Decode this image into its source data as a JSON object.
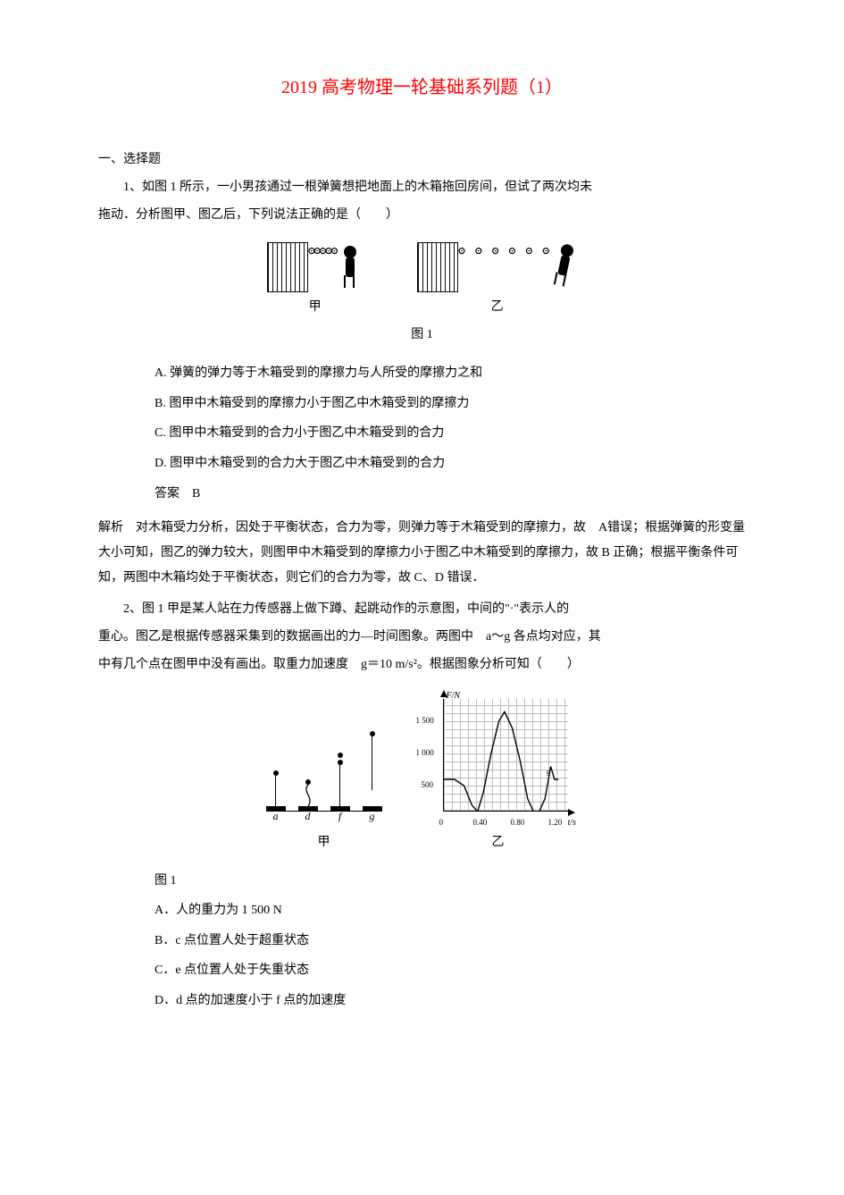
{
  "title": "2019 高考物理一轮基础系列题（1）",
  "section1_header": "一、选择题",
  "q1": {
    "text_line1": "1、如图 1 所示，一小男孩通过一根弹簧想把地面上的木箱拖回房间，但试了两次均未",
    "text_line2": "拖动．分析图甲、图乙后，下列说法正确的是（　　）",
    "fig_label_jia": "甲",
    "fig_label_yi": "乙",
    "fig_caption": "图 1",
    "opt_a": "A. 弹簧的弹力等于木箱受到的摩擦力与人所受的摩擦力之和",
    "opt_b": "B. 图甲中木箱受到的摩擦力小于图乙中木箱受到的摩擦力",
    "opt_c": "C. 图甲中木箱受到的合力小于图乙中木箱受到的合力",
    "opt_d": "D. 图甲中木箱受到的合力大于图乙中木箱受到的合力",
    "answer": "答案　B",
    "explanation": "解析　对木箱受力分析，因处于平衡状态，合力为零，则弹力等于木箱受到的摩擦力，故　A错误；根据弹簧的形变量大小可知，图乙的弹力较大，则图甲中木箱受到的摩擦力小于图乙中木箱受到的摩擦力，故 B 正确；根据平衡条件可知，两图中木箱均处于平衡状态，则它们的合力为零，故 C、D 错误．"
  },
  "q2": {
    "text_line1": "2、图 1 甲是某人站在力传感器上做下蹲、起跳动作的示意图，中间的\"·\"表示人的",
    "text_line2": "重心。图乙是根据传感器采集到的数据画出的力—时间图象。两图中　a～g 各点均对应，其",
    "text_line3": "中有几个点在图甲中没有画出。取重力加速度　g＝10 m/s²。根据图象分析可知（　　）",
    "jump_labels": [
      "a",
      "d",
      "f",
      "g"
    ],
    "panel_jia": "甲",
    "panel_yi": "乙",
    "ft_graph": {
      "type": "line",
      "y_title": "F/N",
      "x_title": "t/s",
      "y_ticks": [
        "500",
        "1 000",
        "1 500"
      ],
      "y_tick_values": [
        500,
        1000,
        1500
      ],
      "ylim": [
        0,
        1750
      ],
      "x_ticks": [
        "0",
        "0.40",
        "0.80",
        "1.20"
      ],
      "x_tick_values": [
        0,
        0.4,
        0.8,
        1.2
      ],
      "xlim": [
        0,
        1.3
      ],
      "background_color": "#ffffff",
      "grid_color": "#bbbbbb",
      "axis_color": "#000000",
      "line_color": "#000000",
      "line_width": 1.4,
      "points": [
        [
          0.0,
          500
        ],
        [
          0.12,
          500
        ],
        [
          0.22,
          400
        ],
        [
          0.3,
          100
        ],
        [
          0.36,
          0
        ],
        [
          0.42,
          300
        ],
        [
          0.5,
          900
        ],
        [
          0.58,
          1400
        ],
        [
          0.64,
          1550
        ],
        [
          0.72,
          1300
        ],
        [
          0.8,
          800
        ],
        [
          0.88,
          200
        ],
        [
          0.94,
          0
        ],
        [
          1.0,
          0
        ],
        [
          1.06,
          200
        ],
        [
          1.12,
          700
        ],
        [
          1.16,
          500
        ],
        [
          1.2,
          500
        ]
      ]
    },
    "fig_caption": "图 1",
    "opt_a": "A．人的重力为 1 500 N",
    "opt_b": "B．c 点位置人处于超重状态",
    "opt_c": "C．e 点位置人处于失重状态",
    "opt_d": "D．d 点的加速度小于 f 点的加速度"
  }
}
